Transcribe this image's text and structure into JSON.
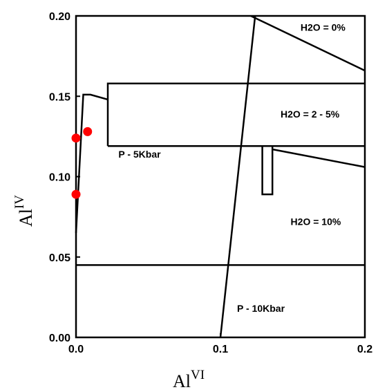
{
  "chart_data": {
    "type": "scatter",
    "title": "",
    "xlabel": {
      "base": "Al",
      "sup": "VI"
    },
    "ylabel": {
      "base": "Al",
      "sup": "IV"
    },
    "xlim": [
      0.0,
      0.2
    ],
    "ylim": [
      0.0,
      0.2
    ],
    "x_ticks": [
      {
        "value": 0.0,
        "label": "0.0"
      },
      {
        "value": 0.1,
        "label": "0.1"
      },
      {
        "value": 0.2,
        "label": "0.2"
      }
    ],
    "y_ticks": [
      {
        "value": 0.0,
        "label": "0.00"
      },
      {
        "value": 0.05,
        "label": "0.05"
      },
      {
        "value": 0.1,
        "label": "0.10"
      },
      {
        "value": 0.15,
        "label": "0.15"
      },
      {
        "value": 0.2,
        "label": "0.20"
      }
    ],
    "grid": false,
    "marker_color": "#ff0000",
    "points": [
      {
        "x": 0.0,
        "y": 0.124
      },
      {
        "x": 0.008,
        "y": 0.128
      },
      {
        "x": 0.0,
        "y": 0.089
      }
    ],
    "boundary_lines": [
      {
        "points": [
          [
            0.0,
            0.065
          ],
          [
            0.005,
            0.151
          ],
          [
            0.01,
            0.151
          ],
          [
            0.022,
            0.148
          ]
        ]
      },
      {
        "points": [
          [
            0.022,
            0.119
          ],
          [
            0.022,
            0.158
          ],
          [
            0.2,
            0.158
          ]
        ]
      },
      {
        "points": [
          [
            0.022,
            0.119
          ],
          [
            0.2,
            0.119
          ]
        ]
      },
      {
        "points": [
          [
            0.129,
            0.119
          ],
          [
            0.129,
            0.089
          ],
          [
            0.136,
            0.089
          ],
          [
            0.136,
            0.119
          ]
        ]
      },
      {
        "points": [
          [
            0.136,
            0.117
          ],
          [
            0.2,
            0.106
          ]
        ]
      },
      {
        "points": [
          [
            0.121,
            0.2
          ],
          [
            0.2,
            0.166
          ]
        ]
      },
      {
        "points": [
          [
            0.0,
            0.045
          ],
          [
            0.2,
            0.045
          ]
        ]
      },
      {
        "points": [
          [
            0.1,
            0.0
          ],
          [
            0.124,
            0.2
          ]
        ]
      }
    ],
    "annotations": [
      {
        "text": "H2O = 0%",
        "x": 0.171,
        "y": 0.193
      },
      {
        "text": "H2O = 2 - 5%",
        "x": 0.162,
        "y": 0.139
      },
      {
        "text": "P - 5Kbar",
        "x": 0.044,
        "y": 0.114
      },
      {
        "text": "H2O = 10%",
        "x": 0.166,
        "y": 0.072
      },
      {
        "text": "P - 10Kbar",
        "x": 0.128,
        "y": 0.018
      }
    ]
  }
}
